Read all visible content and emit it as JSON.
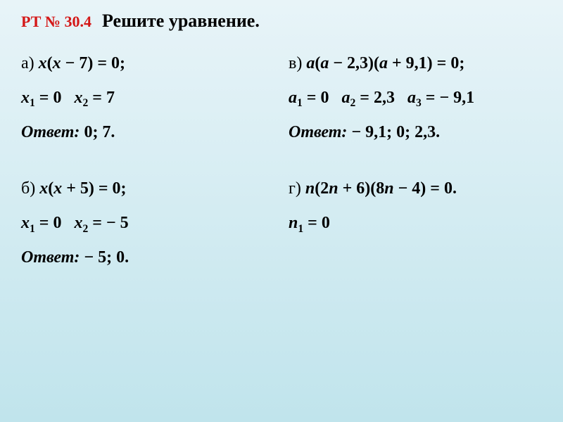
{
  "header": {
    "ref": "РТ № 30.4",
    "title": "Решите уравнение."
  },
  "problems": {
    "a": {
      "letter": "а)",
      "equation_html": "<span class='var'>x</span>(<span class='var'>x</span> − 7) = 0;",
      "solutions": [
        {
          "var": "x",
          "sub": "1",
          "val": "0"
        },
        {
          "var": "x",
          "sub": "2",
          "val": "7"
        }
      ],
      "answer_label": "Ответ:",
      "answer_value": "0; 7."
    },
    "v": {
      "letter": "в)",
      "equation_html": "<span class='var'>a</span>(<span class='var'>a</span> − 2,3)(<span class='var'>a</span> + 9,1) = 0;",
      "solutions": [
        {
          "var": "a",
          "sub": "1",
          "val": "0"
        },
        {
          "var": "a",
          "sub": "2",
          "val": "2,3"
        },
        {
          "var": "a",
          "sub": "3",
          "val": "− 9,1"
        }
      ],
      "answer_label": "Ответ:",
      "answer_value": "− 9,1; 0; 2,3."
    },
    "b": {
      "letter": "б)",
      "equation_html": "<span class='var'>x</span>(<span class='var'>x</span> + 5) = 0;",
      "solutions": [
        {
          "var": "x",
          "sub": "1",
          "val": "0"
        },
        {
          "var": "x",
          "sub": "2",
          "val": "− 5"
        }
      ],
      "answer_label": "Ответ:",
      "answer_value": "− 5; 0."
    },
    "g": {
      "letter": "г)",
      "equation_html": "<span class='var'>n</span>(2<span class='var'>n</span> + 6)(8<span class='var'>n</span> − 4) = 0.",
      "solutions": [
        {
          "var": "n",
          "sub": "1",
          "val": "0"
        }
      ],
      "answer_label": "",
      "answer_value": ""
    }
  },
  "colors": {
    "ref": "#d41818",
    "text": "#000000",
    "bg_top": "#e8f4f8",
    "bg_bottom": "#c0e4ec"
  },
  "fonts": {
    "title_size": 26,
    "ref_size": 22,
    "body_size": 24
  }
}
